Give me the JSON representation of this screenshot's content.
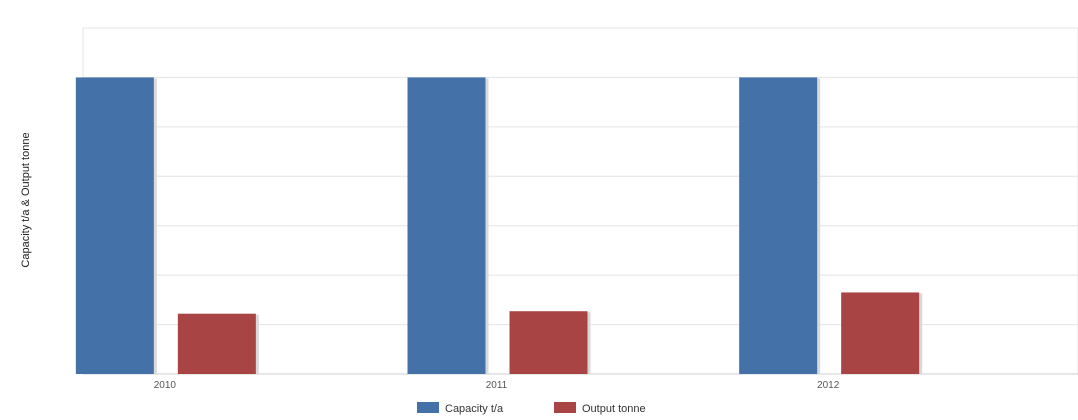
{
  "chart_data": {
    "type": "bar",
    "ylabel": "Capacity t/a & Output tonne",
    "xlabel": "",
    "categories": [
      "2010",
      "2011",
      "2012"
    ],
    "series": [
      {
        "name": "Capacity t/a",
        "color": "#4471a8",
        "values": [
          6,
          6,
          6
        ]
      },
      {
        "name": "Output tonne",
        "color": "#a84444",
        "values": [
          1.22,
          1.27,
          1.65
        ]
      }
    ],
    "ylim": [
      0,
      7
    ],
    "y_gridlines": 7,
    "y_tick_labels_shown": false,
    "grid": true,
    "legend_position": "bottom-center"
  }
}
